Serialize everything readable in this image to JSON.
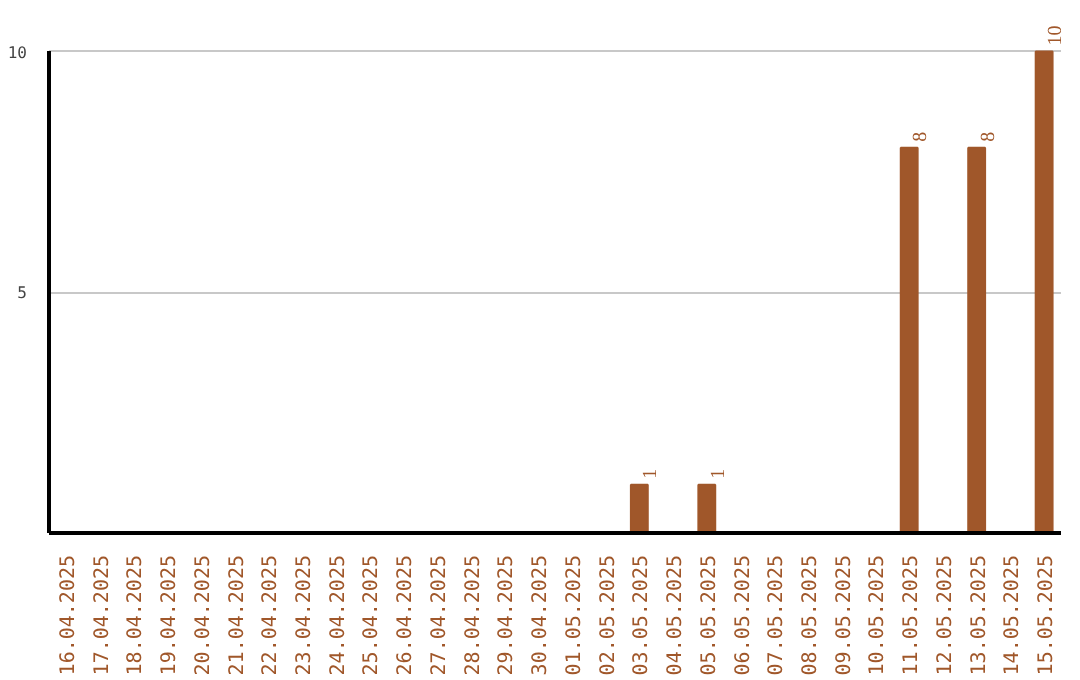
{
  "chart_data": {
    "type": "bar",
    "categories": [
      "16.04.2025",
      "17.04.2025",
      "18.04.2025",
      "19.04.2025",
      "20.04.2025",
      "21.04.2025",
      "22.04.2025",
      "23.04.2025",
      "24.04.2025",
      "25.04.2025",
      "26.04.2025",
      "27.04.2025",
      "28.04.2025",
      "29.04.2025",
      "30.04.2025",
      "01.05.2025",
      "02.05.2025",
      "03.05.2025",
      "04.05.2025",
      "05.05.2025",
      "06.05.2025",
      "07.05.2025",
      "08.05.2025",
      "09.05.2025",
      "10.05.2025",
      "11.05.2025",
      "12.05.2025",
      "13.05.2025",
      "14.05.2025",
      "15.05.2025"
    ],
    "values": [
      0,
      0,
      0,
      0,
      0,
      0,
      0,
      0,
      0,
      0,
      0,
      0,
      0,
      0,
      0,
      0,
      0,
      1,
      0,
      1,
      0,
      0,
      0,
      0,
      0,
      8,
      0,
      8,
      0,
      10
    ],
    "value_labels": [
      null,
      null,
      null,
      null,
      null,
      null,
      null,
      null,
      null,
      null,
      null,
      null,
      null,
      null,
      null,
      null,
      null,
      "1",
      null,
      "1",
      null,
      null,
      null,
      null,
      null,
      "8",
      null,
      "8",
      null,
      "10"
    ],
    "color": "#a0572a",
    "ylim": [
      0,
      10
    ],
    "yticks": [
      5,
      10
    ],
    "grid": "y"
  }
}
